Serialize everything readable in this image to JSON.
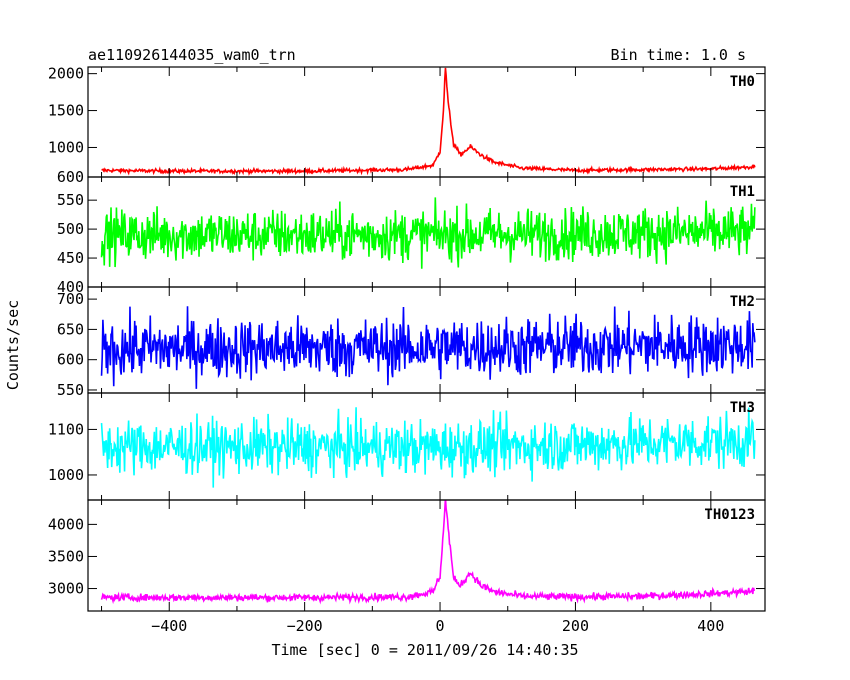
{
  "header": {
    "title": "ae110926144035_wam0_trn",
    "bin_time": "Bin time: 1.0 s"
  },
  "chart_data": {
    "type": "line",
    "title": "ae110926144035_wam0_trn",
    "subtitle": "Bin time: 1.0 s",
    "xlabel": "Time [sec] 0 = 2011/09/26 14:40:35",
    "ylabel": "Counts/sec",
    "xlim": [
      -520,
      480
    ],
    "x_ticks": [
      -400,
      -200,
      0,
      200,
      400
    ],
    "x_tick_labels": [
      "−400",
      "−200",
      "0",
      "200",
      "400"
    ],
    "data_x_range": [
      -500,
      465
    ],
    "grid": false,
    "panels": [
      {
        "name": "TH0",
        "color": "#ff0000",
        "ylim": [
          600,
          2090
        ],
        "y_ticks": [
          600,
          1000,
          1500,
          2000
        ],
        "baseline": 680,
        "noise": 25,
        "burst": {
          "peak_time": 8,
          "peak_value": 2090,
          "secondary_time": 45,
          "secondary_value": 1010
        },
        "anchors": [
          [
            -500,
            690
          ],
          [
            -400,
            680
          ],
          [
            -200,
            680
          ],
          [
            -50,
            700
          ],
          [
            -10,
            760
          ],
          [
            0,
            950
          ],
          [
            5,
            1500
          ],
          [
            8,
            2090
          ],
          [
            12,
            1600
          ],
          [
            20,
            1050
          ],
          [
            30,
            900
          ],
          [
            45,
            1010
          ],
          [
            60,
            900
          ],
          [
            80,
            800
          ],
          [
            120,
            720
          ],
          [
            200,
            690
          ],
          [
            300,
            700
          ],
          [
            400,
            710
          ],
          [
            465,
            740
          ]
        ]
      },
      {
        "name": "TH1",
        "color": "#00ff00",
        "ylim": [
          400,
          590
        ],
        "y_ticks": [
          400,
          450,
          500,
          550
        ],
        "baseline": 490,
        "noise": 45,
        "anchors": [
          [
            -500,
            490
          ],
          [
            0,
            490
          ],
          [
            465,
            495
          ]
        ]
      },
      {
        "name": "TH2",
        "color": "#0000ff",
        "ylim": [
          545,
          720
        ],
        "y_ticks": [
          550,
          600,
          650,
          700
        ],
        "baseline": 618,
        "noise": 50,
        "anchors": [
          [
            -500,
            618
          ],
          [
            0,
            620
          ],
          [
            465,
            625
          ]
        ]
      },
      {
        "name": "TH3",
        "color": "#00ffff",
        "ylim": [
          945,
          1180
        ],
        "y_ticks": [
          1000,
          1100
        ],
        "baseline": 1062,
        "noise": 60,
        "anchors": [
          [
            -500,
            1062
          ],
          [
            0,
            1060
          ],
          [
            465,
            1075
          ]
        ]
      },
      {
        "name": "TH0123",
        "color": "#ff00ff",
        "ylim": [
          2650,
          4380
        ],
        "y_ticks": [
          3000,
          3500,
          4000
        ],
        "baseline": 2860,
        "noise": 55,
        "anchors": [
          [
            -500,
            2860
          ],
          [
            -200,
            2860
          ],
          [
            -50,
            2870
          ],
          [
            -10,
            2950
          ],
          [
            0,
            3200
          ],
          [
            5,
            3900
          ],
          [
            8,
            4380
          ],
          [
            12,
            3950
          ],
          [
            20,
            3150
          ],
          [
            30,
            3050
          ],
          [
            45,
            3250
          ],
          [
            60,
            3050
          ],
          [
            80,
            2950
          ],
          [
            120,
            2880
          ],
          [
            200,
            2870
          ],
          [
            300,
            2880
          ],
          [
            400,
            2920
          ],
          [
            465,
            2960
          ]
        ]
      }
    ]
  }
}
